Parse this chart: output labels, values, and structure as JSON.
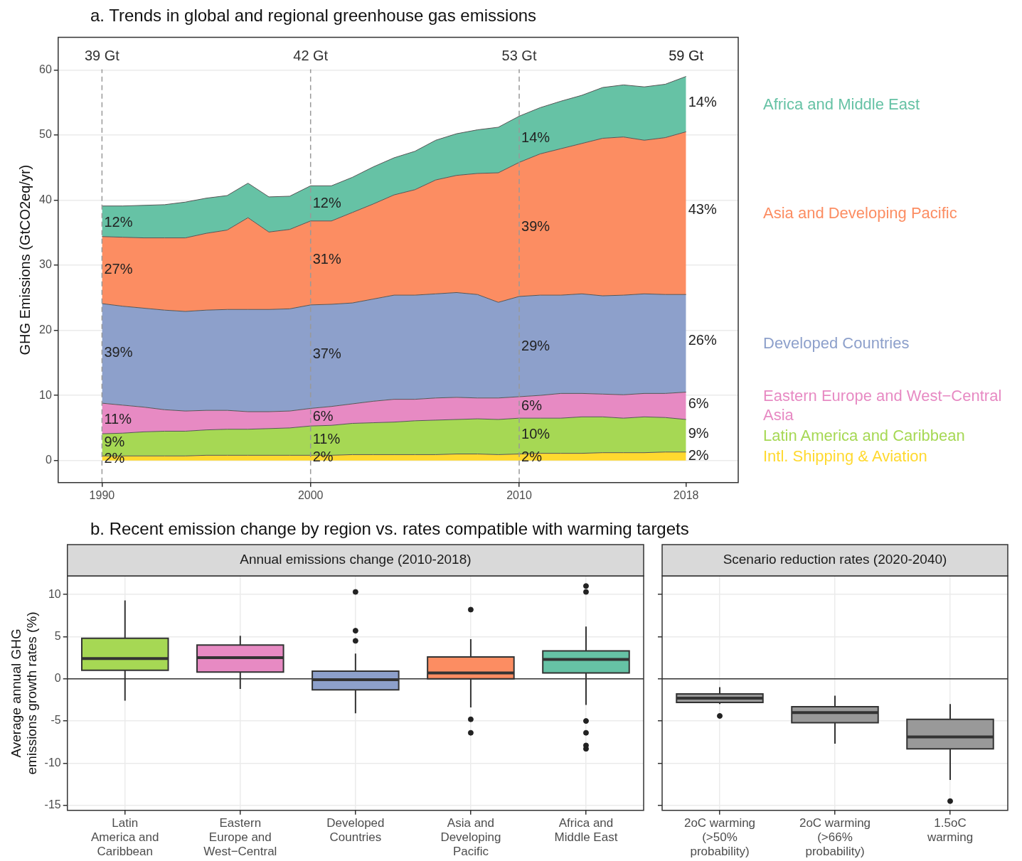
{
  "chart_data": [
    {
      "type": "area",
      "title": "a. Trends in global and regional greenhouse gas emissions",
      "ylabel": "GHG Emissions (GtCO2eq/yr)",
      "stacked": true,
      "marker": "none",
      "grid": "y",
      "legend": "right",
      "x": [
        1990,
        1991,
        1992,
        1993,
        1994,
        1995,
        1996,
        1997,
        1998,
        1999,
        2000,
        2001,
        2002,
        2003,
        2004,
        2005,
        2006,
        2007,
        2008,
        2009,
        2010,
        2011,
        2012,
        2013,
        2014,
        2015,
        2016,
        2017,
        2018
      ],
      "xlim": [
        1987.9,
        2020.5
      ],
      "xticks": [
        1990,
        2000,
        2010,
        2018
      ],
      "ylim": [
        -3.4,
        65
      ],
      "yticks": [
        0,
        10,
        20,
        30,
        40,
        50,
        60
      ],
      "series": [
        {
          "name": "Intl. Shipping & Aviation",
          "color": "#ffd92f",
          "values": [
            0.7,
            0.7,
            0.7,
            0.7,
            0.7,
            0.8,
            0.8,
            0.8,
            0.8,
            0.8,
            0.8,
            0.8,
            0.9,
            0.9,
            0.9,
            0.9,
            0.9,
            1.0,
            1.0,
            0.9,
            1.0,
            1.1,
            1.1,
            1.1,
            1.2,
            1.2,
            1.2,
            1.3,
            1.3
          ]
        },
        {
          "name": "Latin America and Caribbean",
          "color": "#a6d854",
          "values": [
            3.4,
            3.5,
            3.7,
            3.8,
            3.8,
            3.9,
            4.0,
            4.0,
            4.1,
            4.2,
            4.5,
            4.6,
            4.8,
            4.9,
            5.0,
            5.2,
            5.3,
            5.3,
            5.4,
            5.4,
            5.5,
            5.4,
            5.4,
            5.6,
            5.5,
            5.3,
            5.5,
            5.3,
            5.0
          ]
        },
        {
          "name": "Eastern Europe and West−Central Asia",
          "color": "#e78ac3",
          "values": [
            4.7,
            4.3,
            3.8,
            3.3,
            3.1,
            3.0,
            2.9,
            2.7,
            2.6,
            2.6,
            2.7,
            2.9,
            3.0,
            3.3,
            3.5,
            3.3,
            3.4,
            3.4,
            3.2,
            3.3,
            3.3,
            3.5,
            3.8,
            3.6,
            3.5,
            3.6,
            3.6,
            3.7,
            4.2
          ]
        },
        {
          "name": "Developed Countries",
          "color": "#8da0cb",
          "values": [
            15.3,
            15.2,
            15.2,
            15.3,
            15.3,
            15.4,
            15.5,
            15.7,
            15.7,
            15.7,
            15.9,
            15.7,
            15.5,
            15.7,
            16.0,
            16.0,
            16.0,
            16.1,
            15.9,
            14.7,
            15.4,
            15.4,
            15.1,
            15.3,
            15.1,
            15.3,
            15.3,
            15.2,
            15.0
          ]
        },
        {
          "name": "Asia and Developing Pacific",
          "color": "#fc8d62",
          "values": [
            10.3,
            10.6,
            10.8,
            11.1,
            11.3,
            11.8,
            12.2,
            14.1,
            11.9,
            12.2,
            12.9,
            12.8,
            13.9,
            14.6,
            15.4,
            16.2,
            17.5,
            18.0,
            18.6,
            19.9,
            20.6,
            21.7,
            22.5,
            23.1,
            24.2,
            24.3,
            23.6,
            24.1,
            25.0
          ]
        },
        {
          "name": "Africa and Middle East",
          "color": "#66c2a5",
          "values": [
            4.7,
            4.8,
            5.0,
            5.1,
            5.5,
            5.4,
            5.3,
            5.3,
            5.4,
            5.1,
            5.4,
            5.4,
            5.4,
            5.7,
            5.7,
            5.9,
            6.1,
            6.4,
            6.7,
            7.0,
            7.1,
            7.1,
            7.3,
            7.4,
            7.8,
            8.0,
            8.2,
            8.2,
            8.5
          ]
        }
      ],
      "ref_lines": [
        {
          "axis": "x",
          "value": 1990,
          "label": "39 Gt",
          "color": "#999999",
          "line_style": "dashed"
        },
        {
          "axis": "x",
          "value": 2000,
          "label": "42 Gt",
          "color": "#999999",
          "line_style": "dashed"
        },
        {
          "axis": "x",
          "value": 2010,
          "label": "53 Gt",
          "color": "#999999",
          "line_style": "dashed"
        }
      ],
      "annotations": [
        "59 Gt",
        {
          "text": "12%",
          "x": 1990,
          "y": 36.5
        },
        {
          "text": "27%",
          "x": 1990,
          "y": 29.3
        },
        {
          "text": "39%",
          "x": 1990,
          "y": 16.5
        },
        {
          "text": "11%",
          "x": 1990,
          "y": 6.3
        },
        {
          "text": "9%",
          "x": 1990,
          "y": 2.8
        },
        {
          "text": "2%",
          "x": 1990,
          "y": 0.2
        },
        {
          "text": "12%",
          "x": 2000,
          "y": 39.5
        },
        {
          "text": "31%",
          "x": 2000,
          "y": 30.8
        },
        {
          "text": "37%",
          "x": 2000,
          "y": 16.3
        },
        {
          "text": "6%",
          "x": 2000,
          "y": 6.7
        },
        {
          "text": "11%",
          "x": 2000,
          "y": 3.2
        },
        {
          "text": "2%",
          "x": 2000,
          "y": 0.5
        },
        {
          "text": "14%",
          "x": 2010,
          "y": 49.5
        },
        {
          "text": "39%",
          "x": 2010,
          "y": 35.8
        },
        {
          "text": "29%",
          "x": 2010,
          "y": 17.5
        },
        {
          "text": "6%",
          "x": 2010,
          "y": 8.3
        },
        {
          "text": "10%",
          "x": 2010,
          "y": 4.0
        },
        {
          "text": "2%",
          "x": 2010,
          "y": 0.5
        },
        {
          "text": "14%",
          "x": 2018,
          "y": 55.0
        },
        {
          "text": "43%",
          "x": 2018,
          "y": 38.5
        },
        {
          "text": "26%",
          "x": 2018,
          "y": 18.4
        },
        {
          "text": "6%",
          "x": 2018,
          "y": 8.6
        },
        {
          "text": "9%",
          "x": 2018,
          "y": 4.1
        },
        {
          "text": "2%",
          "x": 2018,
          "y": 0.7
        }
      ]
    },
    {
      "type": "box",
      "title": "b. Recent emission change by region vs. rates compatible with warming targets",
      "subtitle": "Annual emissions change (2010-2018)",
      "ylabel": "Average annual GHG emissions growth rates (%)",
      "grid": true,
      "categories": [
        "Latin America and Caribbean",
        "Eastern Europe and West−Central",
        "Developed Countries",
        "Asia and Developing Pacific",
        "Africa and Middle East"
      ],
      "colors": [
        "#a6d854",
        "#e78ac3",
        "#8da0cb",
        "#fc8d62",
        "#66c2a5"
      ],
      "ylim": [
        -15.6,
        12.2
      ],
      "yticks": [
        10,
        5,
        0,
        -5,
        -10,
        -15
      ],
      "boxes": [
        {
          "low": -2.6,
          "q1": 1.0,
          "median": 2.4,
          "q3": 4.8,
          "high": 9.3
        },
        {
          "low": -1.2,
          "q1": 0.8,
          "median": 2.5,
          "q3": 4.0,
          "high": 5.1
        },
        {
          "low": -4.1,
          "q1": -1.3,
          "median": -0.1,
          "q3": 0.9,
          "high": 3.0,
          "outliers": [
            10.3,
            5.7,
            4.5
          ]
        },
        {
          "low": -3.4,
          "q1": 0.0,
          "median": 0.7,
          "q3": 2.6,
          "high": 4.7,
          "outliers": [
            8.2,
            -4.8,
            -6.4
          ]
        },
        {
          "low": -3.1,
          "q1": 0.7,
          "median": 2.3,
          "q3": 3.3,
          "high": 6.2,
          "outliers": [
            11.0,
            10.3,
            -5.0,
            -6.4,
            -7.9,
            -8.3
          ]
        }
      ],
      "ref_lines": [
        {
          "axis": "y",
          "value": 0,
          "color": "#333333"
        }
      ]
    },
    {
      "type": "box",
      "subtitle": "Scenario reduction rates (2020-2040)",
      "grid": true,
      "tick_labels": "x",
      "categories": [
        "2oC warming (>50% probability)",
        "2oC warming (>66% probability)",
        "1.5oC warming"
      ],
      "colors": [
        "#999999",
        "#999999",
        "#999999"
      ],
      "ylim": [
        -15.6,
        12.2
      ],
      "yticks": [
        10,
        5,
        0,
        -5,
        -10,
        -15
      ],
      "boxes": [
        {
          "low": -3.0,
          "q1": -2.8,
          "median": -2.3,
          "q3": -1.8,
          "high": -1.0,
          "outliers": [
            -4.4
          ]
        },
        {
          "low": -7.7,
          "q1": -5.2,
          "median": -4.0,
          "q3": -3.3,
          "high": -2.0
        },
        {
          "low": -12.0,
          "q1": -8.3,
          "median": -6.9,
          "q3": -4.8,
          "high": -3.0,
          "outliers": [
            -14.5
          ]
        }
      ],
      "ref_lines": [
        {
          "axis": "y",
          "value": 0,
          "color": "#333333"
        }
      ]
    }
  ]
}
